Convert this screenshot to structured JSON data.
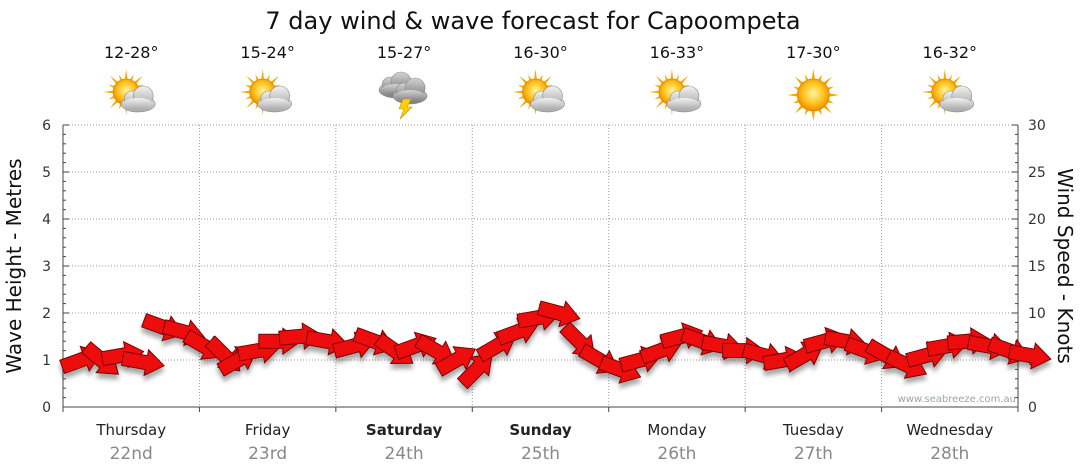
{
  "chart_data": {
    "type": "line",
    "title": "7 day wind & wave forecast for Capoompeta",
    "ylabel_left": "Wave Height - Metres",
    "ylabel_right": "Wind Speed - Knots",
    "ylim_left": [
      0,
      6
    ],
    "ylim_right": [
      0,
      30
    ],
    "yticks_left": [
      "0",
      "1",
      "2",
      "3",
      "4",
      "5",
      "6"
    ],
    "yticks_right": [
      "0",
      "5",
      "10",
      "15",
      "20",
      "25",
      "30"
    ],
    "grid": true,
    "credit": "www.seabreeze.com.au",
    "days": [
      {
        "name": "Thursday",
        "date": "22nd",
        "temp": "12-28°",
        "icon": "sun-cloud",
        "bold": false
      },
      {
        "name": "Friday",
        "date": "23rd",
        "temp": "15-24°",
        "icon": "sun-cloud",
        "bold": false
      },
      {
        "name": "Saturday",
        "date": "24th",
        "temp": "15-27°",
        "icon": "storm",
        "bold": true
      },
      {
        "name": "Sunday",
        "date": "25th",
        "temp": "16-30°",
        "icon": "sun-cloud",
        "bold": true
      },
      {
        "name": "Monday",
        "date": "26th",
        "temp": "16-33°",
        "icon": "sun-cloud",
        "bold": false
      },
      {
        "name": "Tuesday",
        "date": "27th",
        "temp": "17-30°",
        "icon": "sun",
        "bold": false
      },
      {
        "name": "Wednesday",
        "date": "28th",
        "temp": "16-32°",
        "icon": "sun-cloud",
        "bold": false
      }
    ],
    "series": [
      {
        "name": "Wind Speed",
        "unit": "knots",
        "color": "#ee1111",
        "points": [
          {
            "d": 0.0,
            "v": 5.0,
            "dir": -20
          },
          {
            "d": 0.15,
            "v": 5.0,
            "dir": 40
          },
          {
            "d": 0.3,
            "v": 5.5,
            "dir": -10
          },
          {
            "d": 0.45,
            "v": 4.8,
            "dir": 10
          },
          {
            "d": 0.6,
            "v": 8.5,
            "dir": 20
          },
          {
            "d": 0.75,
            "v": 8.0,
            "dir": 15
          },
          {
            "d": 0.9,
            "v": 6.5,
            "dir": 30
          },
          {
            "d": 1.05,
            "v": 5.5,
            "dir": 45
          },
          {
            "d": 1.15,
            "v": 5.0,
            "dir": -30
          },
          {
            "d": 1.3,
            "v": 6.0,
            "dir": -10
          },
          {
            "d": 1.45,
            "v": 7.0,
            "dir": 0
          },
          {
            "d": 1.6,
            "v": 7.5,
            "dir": -5
          },
          {
            "d": 1.8,
            "v": 7.0,
            "dir": 10
          },
          {
            "d": 2.0,
            "v": 6.5,
            "dir": -15
          },
          {
            "d": 2.15,
            "v": 7.0,
            "dir": 20
          },
          {
            "d": 2.3,
            "v": 6.0,
            "dir": 35
          },
          {
            "d": 2.45,
            "v": 6.5,
            "dir": -20
          },
          {
            "d": 2.6,
            "v": 6.0,
            "dir": 30
          },
          {
            "d": 2.75,
            "v": 5.0,
            "dir": -30
          },
          {
            "d": 2.9,
            "v": 4.0,
            "dir": -45
          },
          {
            "d": 3.05,
            "v": 6.5,
            "dir": -30
          },
          {
            "d": 3.2,
            "v": 8.0,
            "dir": -20
          },
          {
            "d": 3.35,
            "v": 9.5,
            "dir": -10
          },
          {
            "d": 3.5,
            "v": 10.0,
            "dir": 15
          },
          {
            "d": 3.65,
            "v": 7.0,
            "dir": 45
          },
          {
            "d": 3.8,
            "v": 5.0,
            "dir": 30
          },
          {
            "d": 3.95,
            "v": 4.0,
            "dir": 20
          },
          {
            "d": 4.1,
            "v": 5.0,
            "dir": -15
          },
          {
            "d": 4.25,
            "v": 6.0,
            "dir": -20
          },
          {
            "d": 4.4,
            "v": 7.5,
            "dir": -15
          },
          {
            "d": 4.55,
            "v": 7.0,
            "dir": 20
          },
          {
            "d": 4.7,
            "v": 6.5,
            "dir": 10
          },
          {
            "d": 4.85,
            "v": 6.0,
            "dir": 0
          },
          {
            "d": 5.0,
            "v": 5.5,
            "dir": 15
          },
          {
            "d": 5.15,
            "v": 5.0,
            "dir": -10
          },
          {
            "d": 5.3,
            "v": 5.5,
            "dir": -30
          },
          {
            "d": 5.45,
            "v": 7.0,
            "dir": -15
          },
          {
            "d": 5.6,
            "v": 7.0,
            "dir": 10
          },
          {
            "d": 5.75,
            "v": 6.0,
            "dir": 20
          },
          {
            "d": 5.9,
            "v": 5.5,
            "dir": 30
          },
          {
            "d": 6.05,
            "v": 4.5,
            "dir": 25
          },
          {
            "d": 6.2,
            "v": 5.5,
            "dir": -15
          },
          {
            "d": 6.35,
            "v": 6.5,
            "dir": -10
          },
          {
            "d": 6.5,
            "v": 7.0,
            "dir": -5
          },
          {
            "d": 6.65,
            "v": 6.5,
            "dir": 10
          },
          {
            "d": 6.8,
            "v": 6.0,
            "dir": 20
          },
          {
            "d": 6.95,
            "v": 5.5,
            "dir": 10
          }
        ]
      }
    ]
  }
}
